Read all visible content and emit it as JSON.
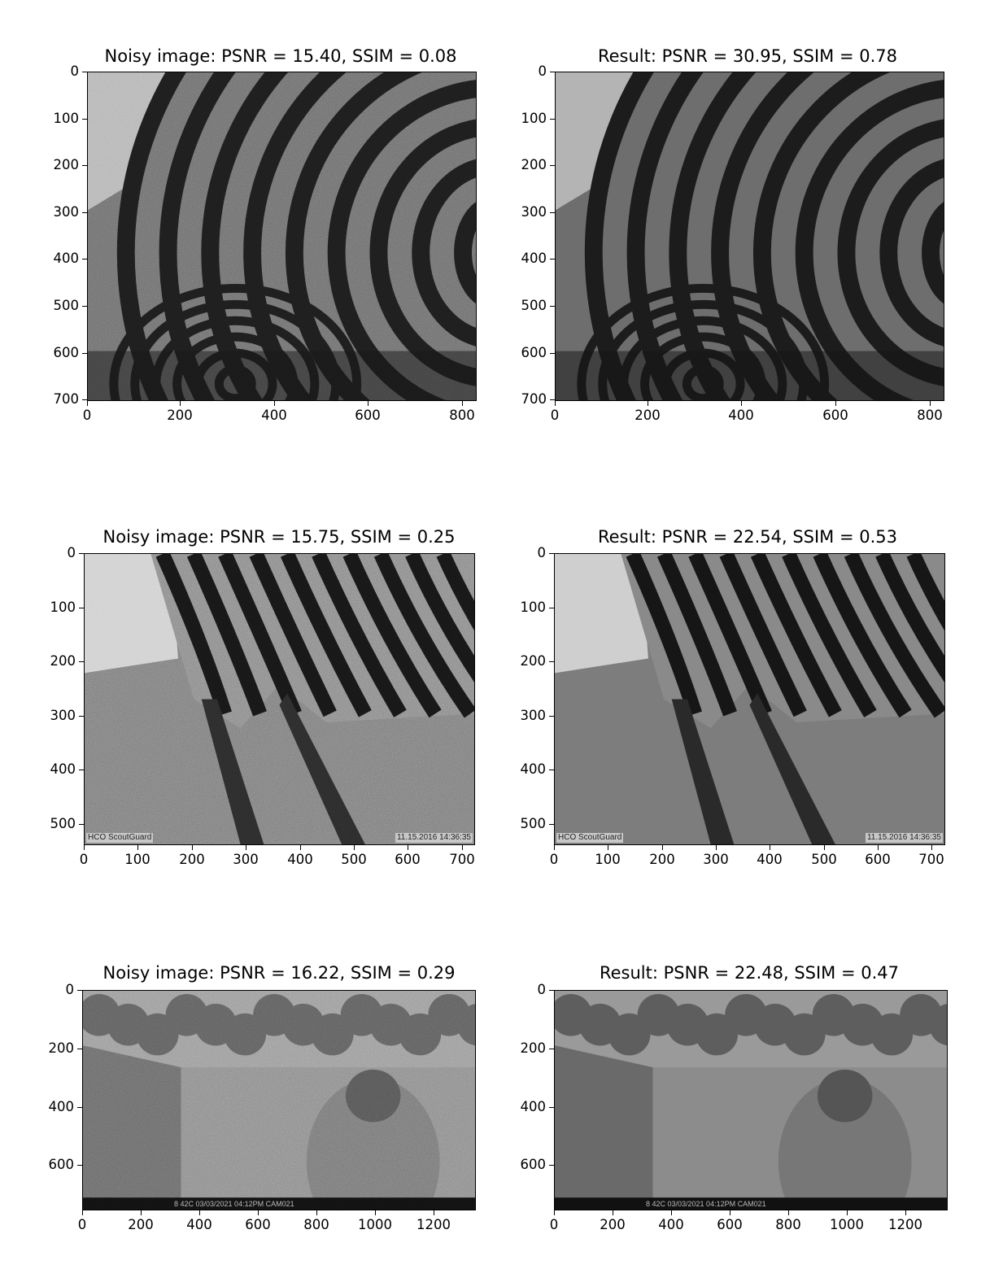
{
  "colors": {
    "background": "#ffffff",
    "axis": "#000000"
  },
  "panels": [
    {
      "id": "p0",
      "title": "Noisy image: PSNR = 15.40, SSIM = 0.08",
      "kind": "zebra1",
      "noisy": true,
      "yticks": [
        "0",
        "100",
        "200",
        "300",
        "400",
        "500",
        "600",
        "700"
      ],
      "xticks": [
        "0",
        "200",
        "400",
        "600",
        "800"
      ],
      "overlay_left": "",
      "overlay_right": ""
    },
    {
      "id": "p1",
      "title": "Result: PSNR = 30.95, SSIM = 0.78",
      "kind": "zebra1",
      "noisy": false,
      "yticks": [
        "0",
        "100",
        "200",
        "300",
        "400",
        "500",
        "600",
        "700"
      ],
      "xticks": [
        "0",
        "200",
        "400",
        "600",
        "800"
      ],
      "overlay_left": "",
      "overlay_right": ""
    },
    {
      "id": "p2",
      "title": "Noisy image: PSNR = 15.75, SSIM = 0.25",
      "kind": "zebra2",
      "noisy": true,
      "yticks": [
        "0",
        "100",
        "200",
        "300",
        "400",
        "500"
      ],
      "xticks": [
        "0",
        "100",
        "200",
        "300",
        "400",
        "500",
        "600",
        "700"
      ],
      "overlay_left": "HCO ScoutGuard",
      "overlay_right": "11.15.2016 14:36:35"
    },
    {
      "id": "p3",
      "title": "Result: PSNR = 22.54, SSIM = 0.53",
      "kind": "zebra2",
      "noisy": false,
      "yticks": [
        "0",
        "100",
        "200",
        "300",
        "400",
        "500"
      ],
      "xticks": [
        "0",
        "100",
        "200",
        "300",
        "400",
        "500",
        "600",
        "700"
      ],
      "overlay_left": "HCO ScoutGuard",
      "overlay_right": "11.15.2016 14:36:35"
    },
    {
      "id": "p4",
      "title": "Noisy image: PSNR = 16.22, SSIM = 0.29",
      "kind": "baboon",
      "noisy": true,
      "yticks": [
        "0",
        "200",
        "400",
        "600"
      ],
      "xticks": [
        "0",
        "200",
        "400",
        "600",
        "800",
        "1000",
        "1200"
      ],
      "overlay_left": "",
      "overlay_right": "8  42C   03/03/2021  04:12PM   CAM021"
    },
    {
      "id": "p5",
      "title": "Result: PSNR = 22.48, SSIM = 0.47",
      "kind": "baboon",
      "noisy": false,
      "yticks": [
        "0",
        "200",
        "400",
        "600"
      ],
      "xticks": [
        "0",
        "200",
        "400",
        "600",
        "800",
        "1000",
        "1200"
      ],
      "overlay_left": "",
      "overlay_right": "8  42C   03/03/2021  04:12PM   CAM021"
    }
  ]
}
